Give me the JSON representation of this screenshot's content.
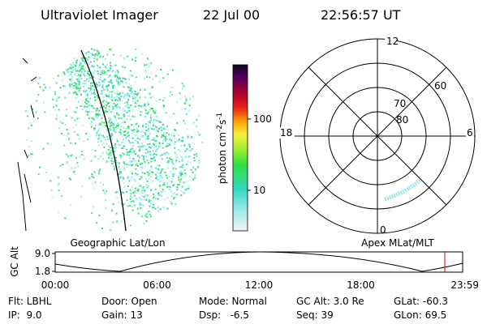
{
  "header": {
    "title": "Ultraviolet Imager",
    "date": "22 Jul 00",
    "time": "22:56:57 UT"
  },
  "left_panel": {
    "label": "Geographic Lat/Lon"
  },
  "right_panel": {
    "label": "Apex MLat/MLT",
    "mlt_labels": {
      "top": "12",
      "left": "18",
      "right": "6",
      "bottom": "0"
    },
    "lat_labels": [
      "80",
      "70",
      "60"
    ]
  },
  "colorbar": {
    "label": [
      "photon cm",
      "-2",
      "s",
      "-1"
    ],
    "log": true,
    "lim": [
      2.7,
      575
    ],
    "ticks": [
      10,
      100
    ]
  },
  "orbit": {
    "ylabel": "GC Alt",
    "ylim": [
      1.8,
      9
    ],
    "yticks": [
      {
        "value": 9,
        "label": "9.0"
      },
      {
        "value": 1.8,
        "label": "1.8"
      }
    ],
    "xticks": [
      "00:00",
      "06:00",
      "12:00",
      "18:00",
      "23:59"
    ]
  },
  "info": [
    [
      "Flt: LBHL",
      "Door: Open",
      "Mode: Normal",
      "GC Alt: 3.0 Re",
      "GLat: -60.3"
    ],
    [
      "IP:  9.0",
      "Gain: 13",
      "Dsp:   -6.5",
      "Seq: 39",
      "GLon: 69.5"
    ]
  ]
}
